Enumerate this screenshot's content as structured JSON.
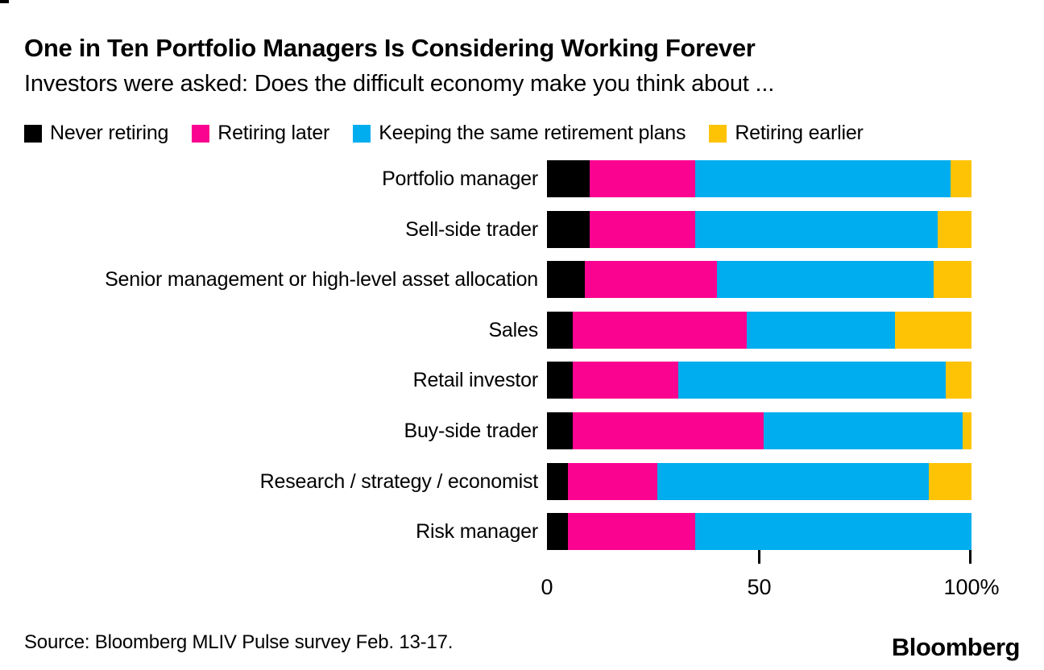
{
  "title": "One in Ten Portfolio Managers Is Considering Working Forever",
  "subtitle": "Investors were asked: Does the difficult economy make you think about ...",
  "legend": [
    {
      "label": "Never retiring",
      "color": "#000000"
    },
    {
      "label": "Retiring later",
      "color": "#FA0390"
    },
    {
      "label": "Keeping the same retirement plans",
      "color": "#00ADEF"
    },
    {
      "label": "Retiring earlier",
      "color": "#FFC306"
    }
  ],
  "chart_data": {
    "type": "bar",
    "orientation": "horizontal",
    "stacked": true,
    "unit": "%",
    "categories": [
      "Portfolio manager",
      "Sell-side trader",
      "Senior management or high-level asset allocation",
      "Sales",
      "Retail investor",
      "Buy-side trader",
      "Research / strategy / economist",
      "Risk manager"
    ],
    "series": [
      {
        "name": "Never retiring",
        "color": "#000000",
        "values": [
          10,
          10,
          9,
          6,
          6,
          6,
          5,
          5
        ]
      },
      {
        "name": "Retiring later",
        "color": "#FA0390",
        "values": [
          25,
          25,
          31,
          41,
          25,
          45,
          21,
          30
        ]
      },
      {
        "name": "Keeping the same retirement plans",
        "color": "#00ADEF",
        "values": [
          60,
          57,
          51,
          35,
          63,
          47,
          64,
          65
        ]
      },
      {
        "name": "Retiring earlier",
        "color": "#FFC306",
        "values": [
          5,
          8,
          9,
          18,
          6,
          2,
          10,
          0
        ]
      }
    ],
    "xlim": [
      0,
      100
    ],
    "x_ticks": [
      0,
      50,
      100
    ],
    "x_tick_labels": [
      "0",
      "50",
      "100%"
    ],
    "legend_position": "top",
    "grid": false
  },
  "source": "Source: Bloomberg MLIV Pulse survey Feb. 13-17.",
  "logo_text": "Bloomberg"
}
